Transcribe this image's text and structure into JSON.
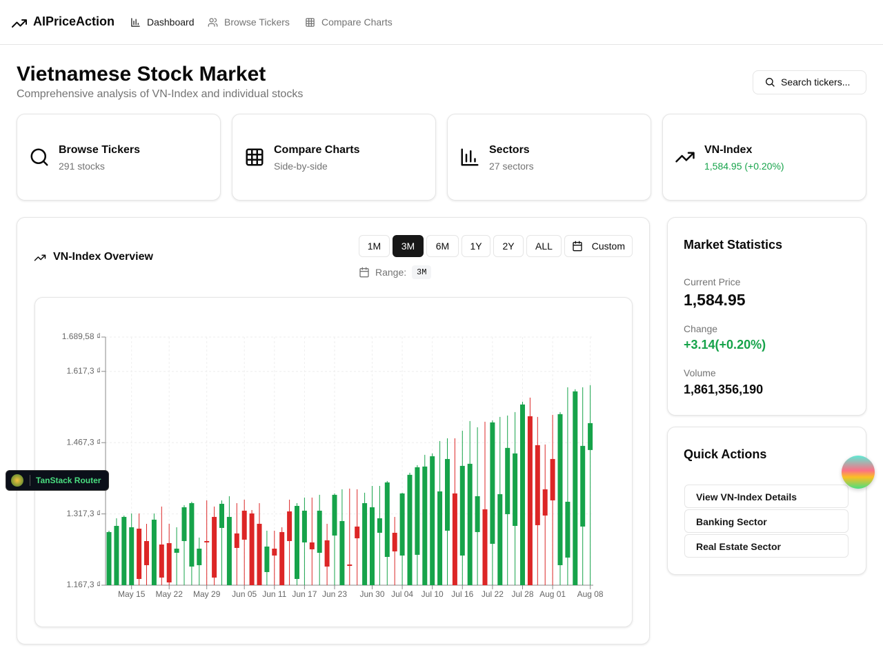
{
  "nav": {
    "brand": "AIPriceAction",
    "links": [
      "Dashboard",
      "Browse Tickers",
      "Compare Charts"
    ]
  },
  "header": {
    "title": "Vietnamese Stock Market",
    "subtitle": "Comprehensive analysis of VN-Index and individual stocks",
    "search": "Search tickers..."
  },
  "cards": [
    {
      "title": "Browse Tickers",
      "subtitle": "291 stocks"
    },
    {
      "title": "Compare Charts",
      "subtitle": "Side-by-side"
    },
    {
      "title": "Sectors",
      "subtitle": "27 sectors"
    },
    {
      "title": "VN-Index",
      "subtitle": "1,584.95 (+0.20%)"
    }
  ],
  "overview": {
    "title": "VN-Index Overview",
    "ranges": [
      "1M",
      "3M",
      "6M",
      "1Y",
      "2Y",
      "ALL",
      "Custom"
    ],
    "range_label": "Range:",
    "range_value": "3M"
  },
  "chart_data": {
    "type": "candlestick",
    "up_color": "#16a34a",
    "down_color": "#dc2626",
    "grid": true,
    "categories": [
      null,
      null,
      null,
      "May 15",
      null,
      null,
      null,
      null,
      "May 22",
      null,
      null,
      null,
      null,
      "May 29",
      null,
      null,
      null,
      null,
      "Jun 05",
      null,
      null,
      null,
      "Jun 11",
      null,
      null,
      null,
      "Jun 17",
      null,
      null,
      null,
      "Jun 23",
      null,
      null,
      null,
      null,
      "Jun 30",
      null,
      null,
      null,
      "Jul 04",
      null,
      null,
      null,
      "Jul 10",
      null,
      null,
      null,
      "Jul 16",
      null,
      null,
      null,
      "Jul 22",
      null,
      null,
      null,
      "Jul 28",
      null,
      null,
      null,
      "Aug 01",
      null,
      null,
      null,
      null,
      "Aug 08"
    ],
    "open": [
      1167.3,
      1167.3,
      1167.3,
      1167.3,
      1286.3,
      1260.2,
      1167.3,
      1252.9,
      1255.8,
      1235.5,
      1260.2,
      1206.5,
      1209.4,
      1260.2,
      1311.0,
      1287.8,
      1167.3,
      1276.2,
      1324.1,
      1318.3,
      1296.5,
      1194.9,
      1244.2,
      1279.1,
      1322.6,
      1180.4,
      1257.3,
      1257.3,
      1235.5,
      1261.7,
      1271.8,
      1167.3,
      1210.8,
      1290.7,
      1167.3,
      1167.3,
      1277.6,
      1226.8,
      1277.6,
      1229.7,
      1167.3,
      1231.2,
      1167.3,
      1167.3,
      1167.3,
      1282.0,
      1360.4,
      1229.7,
      1167.3,
      1279.1,
      1327.0,
      1254.4,
      1167.3,
      1316.8,
      1292.1,
      1167.3,
      1522.9,
      1462.0,
      1369.1,
      1432.9,
      1209.4,
      1225.4,
      1167.3,
      1290.7,
      1451.8
    ],
    "high": [
      1282.0,
      1308.1,
      1313.9,
      1318.3,
      1318.3,
      1296.5,
      1318.3,
      1332.8,
      1296.5,
      1289.2,
      1335.7,
      1342.9,
      1267.5,
      1345.8,
      1332.8,
      1345.8,
      1354.6,
      1340.0,
      1347.3,
      1325.5,
      1340.0,
      1282.0,
      1282.0,
      1289.2,
      1347.3,
      1340.0,
      1351.7,
      1351.7,
      1357.5,
      1296.5,
      1360.4,
      1369.1,
      1370.5,
      1369.1,
      1361.8,
      1376.3,
      1376.3,
      1386.5,
      1311.0,
      1361.8,
      1403.9,
      1419.9,
      1441.7,
      1444.6,
      1470.7,
      1476.5,
      1476.5,
      1492.5,
      1512.8,
      1499.7,
      1511.3,
      1514.2,
      1521.5,
      1524.4,
      1531.7,
      1553.4,
      1562.1,
      1521.5,
      1463.4,
      1525.8,
      1531.7,
      1583.9,
      1579.6,
      1583.9,
      1588.3
    ],
    "low": [
      1167.3,
      1167.3,
      1167.3,
      1167.3,
      1167.3,
      1167.3,
      1167.3,
      1167.3,
      1167.3,
      1167.3,
      1167.3,
      1167.3,
      1167.3,
      1167.3,
      1167.3,
      1167.3,
      1167.3,
      1167.3,
      1167.3,
      1167.3,
      1167.3,
      1167.3,
      1167.3,
      1167.3,
      1167.3,
      1167.3,
      1167.3,
      1167.3,
      1167.3,
      1167.3,
      1167.3,
      1167.3,
      1167.3,
      1167.3,
      1167.3,
      1167.3,
      1167.3,
      1167.3,
      1167.3,
      1167.3,
      1167.3,
      1167.3,
      1167.3,
      1167.3,
      1167.3,
      1167.3,
      1167.3,
      1167.3,
      1167.3,
      1167.3,
      1167.3,
      1167.3,
      1167.3,
      1167.3,
      1167.3,
      1167.3,
      1167.3,
      1167.3,
      1167.3,
      1167.3,
      1167.3,
      1167.3,
      1167.3,
      1167.3,
      1167.3
    ],
    "close": [
      1279.1,
      1292.1,
      1311.0,
      1289.2,
      1180.4,
      1209.4,
      1305.2,
      1183.3,
      1173.1,
      1244.2,
      1331.3,
      1340.0,
      1244.2,
      1257.3,
      1183.3,
      1338.6,
      1311.0,
      1245.7,
      1263.1,
      1167.3,
      1167.3,
      1248.6,
      1229.7,
      1167.3,
      1260.2,
      1334.2,
      1324.1,
      1242.8,
      1324.1,
      1206.5,
      1357.5,
      1302.3,
      1207.9,
      1266.0,
      1340.0,
      1331.3,
      1308.1,
      1383.6,
      1238.4,
      1360.4,
      1399.6,
      1415.5,
      1417.0,
      1438.7,
      1364.7,
      1432.9,
      1167.3,
      1418.4,
      1422.8,
      1354.6,
      1167.3,
      1509.9,
      1358.9,
      1456.2,
      1444.6,
      1547.6,
      1167.3,
      1293.6,
      1313.9,
      1345.8,
      1527.3,
      1342.9,
      1575.2,
      1460.5,
      1508.4
    ],
    "ylim": [
      1167.3,
      1689.58
    ],
    "yticks": [
      {
        "value": 1167.3,
        "label": "1.167,3 ₫"
      },
      {
        "value": 1317.3,
        "label": "1.317,3 ₫"
      },
      {
        "value": 1467.3,
        "label": "1.467,3 ₫"
      },
      {
        "value": 1617.3,
        "label": "1.617,3 ₫"
      },
      {
        "value": 1689.58,
        "label": "1.689,58 ₫"
      }
    ]
  },
  "stats": {
    "title": "Market Statistics",
    "items": [
      {
        "label": "Current Price",
        "value": "1,584.95"
      },
      {
        "label": "Change",
        "value": "+3.14(+0.20%)"
      },
      {
        "label": "Volume",
        "value": "1,861,356,190"
      }
    ]
  },
  "quick_actions": {
    "title": "Quick Actions",
    "items": [
      "View VN-Index Details",
      "Banking Sector",
      "Real Estate Sector"
    ]
  },
  "devtools": {
    "label": "TanStack Router"
  }
}
